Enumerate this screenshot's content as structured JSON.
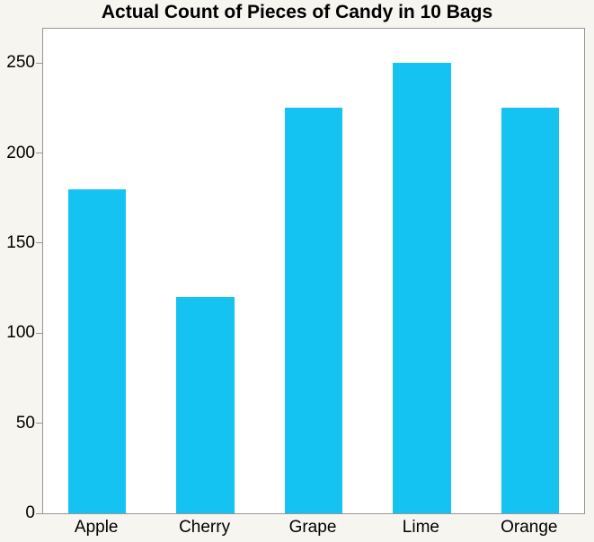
{
  "chart_data": {
    "type": "bar",
    "title": "Actual Count of Pieces of Candy in 10 Bags",
    "categories": [
      "Apple",
      "Cherry",
      "Grape",
      "Lime",
      "Orange"
    ],
    "values": [
      180,
      120,
      225,
      250,
      225
    ],
    "xlabel": "",
    "ylabel": "",
    "ylim": [
      0,
      269
    ],
    "yticks": [
      0,
      50,
      100,
      150,
      200,
      250
    ],
    "grid": false,
    "legend": false,
    "bar_width_fraction": 0.535
  },
  "colors": {
    "bar": "#14C3F2",
    "page_background": "#F7F5F0",
    "plot_background": "#FFFFFF",
    "plot_border": "#979797",
    "tick_mark": "#979797",
    "text": "#000000"
  }
}
